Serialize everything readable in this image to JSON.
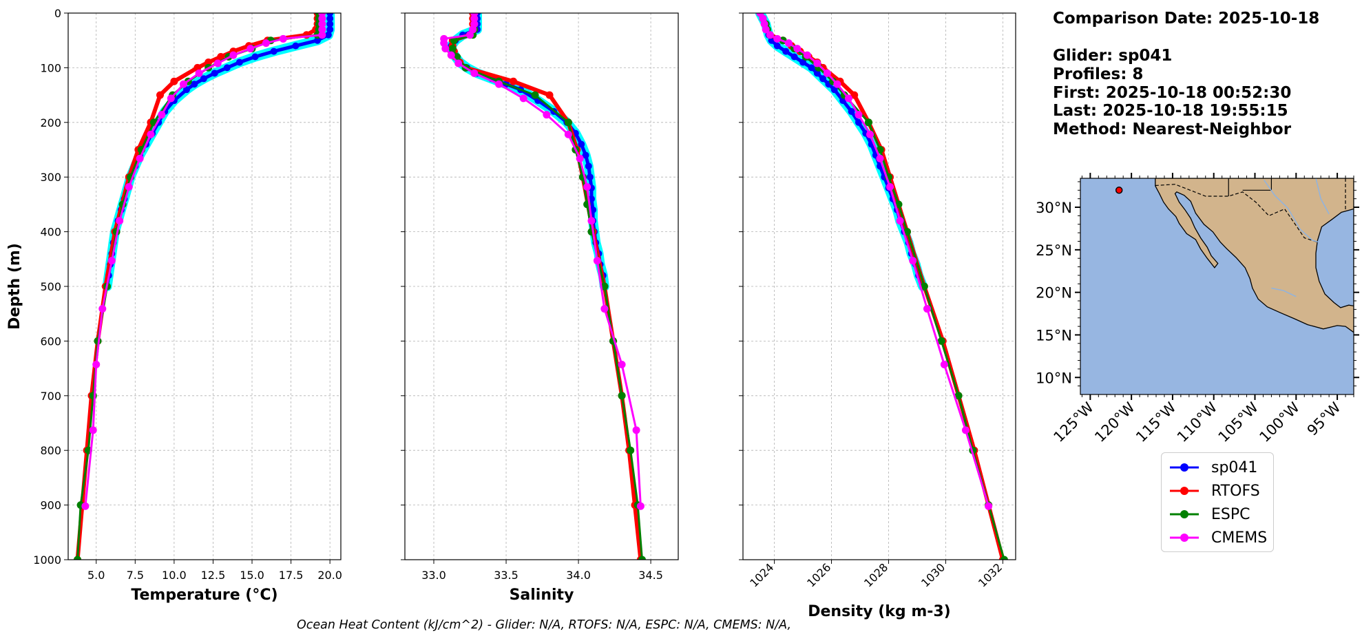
{
  "info": {
    "lines": [
      "Comparison Date: 2025-10-18",
      "",
      "Glider: sp041",
      "Profiles: 8",
      "First: 2025-10-18 00:52:30",
      "Last: 2025-10-18 19:55:15",
      "Method: Nearest-Neighbor"
    ]
  },
  "footer": {
    "ohc": "Ocean Heat Content (kJ/cm^2) - Glider: N/A,  RTOFS: N/A,  ESPC: N/A,  CMEMS: N/A,"
  },
  "colors": {
    "sp041": "#0000ff",
    "sp041_band": "#00ffff",
    "RTOFS": "#ff0000",
    "ESPC": "#008000",
    "CMEMS": "#ff00ff",
    "ocean": "#97b6e1",
    "land": "#d2b48c",
    "grid": "#b0b0b0"
  },
  "legend": {
    "entries": [
      {
        "label": "sp041",
        "color": "#0000ff"
      },
      {
        "label": "RTOFS",
        "color": "#ff0000"
      },
      {
        "label": "ESPC",
        "color": "#008000"
      },
      {
        "label": "CMEMS",
        "color": "#ff00ff"
      }
    ]
  },
  "map": {
    "lat_labels": [
      "30°N",
      "25°N",
      "20°N",
      "15°N",
      "10°N"
    ],
    "lon_labels": [
      "125°W",
      "120°W",
      "115°W",
      "110°W",
      "105°W",
      "100°W",
      "95°W"
    ],
    "lat_ticks": [
      30,
      25,
      20,
      15,
      10
    ],
    "lon_ticks": [
      -125,
      -120,
      -115,
      -110,
      -105,
      -100,
      -95
    ],
    "extent": {
      "lon": [
        -126.2,
        -93
      ],
      "lat": [
        8,
        33.4
      ]
    },
    "glider_position": {
      "lon": -121.5,
      "lat": 32.0
    }
  },
  "chart_data": [
    {
      "type": "line",
      "panel": "temperature",
      "xlabel": "Temperature (°C)",
      "ylabel": "Depth (m)",
      "xlim": [
        3.2,
        20.7
      ],
      "ylim": [
        1000,
        0
      ],
      "x_ticks": [
        5.0,
        7.5,
        10.0,
        12.5,
        15.0,
        17.5,
        20.0
      ],
      "x_tick_labels": [
        "5.0",
        "7.5",
        "10.0",
        "12.5",
        "15.0",
        "17.5",
        "20.0"
      ],
      "y_ticks": [
        0,
        100,
        200,
        300,
        400,
        500,
        600,
        700,
        800,
        900,
        1000
      ],
      "y_tick_labels": [
        "0",
        "100",
        "200",
        "300",
        "400",
        "500",
        "600",
        "700",
        "800",
        "900",
        "1000"
      ],
      "grid": true,
      "series": [
        {
          "name": "sp041",
          "depth": [
            0,
            10,
            20,
            30,
            40,
            50,
            60,
            70,
            80,
            90,
            100,
            110,
            120,
            130,
            140,
            160,
            180,
            200,
            220,
            240,
            260,
            280,
            300,
            320,
            340,
            360,
            380,
            400,
            420,
            440,
            460,
            480,
            500
          ],
          "values": [
            20.0,
            20.0,
            20.0,
            20.0,
            19.9,
            19.2,
            17.8,
            16.4,
            15.2,
            14.2,
            13.4,
            12.6,
            11.9,
            11.3,
            10.8,
            10.0,
            9.4,
            9.0,
            8.6,
            8.2,
            7.8,
            7.5,
            7.2,
            7.0,
            6.8,
            6.6,
            6.4,
            6.2,
            6.1,
            6.0,
            5.9,
            5.8,
            5.7
          ]
        },
        {
          "name": "RTOFS",
          "depth": [
            0,
            10,
            20,
            30,
            40,
            50,
            60,
            70,
            80,
            90,
            100,
            125,
            150,
            200,
            250,
            300,
            400,
            500,
            600,
            700,
            800,
            900,
            1000
          ],
          "values": [
            19.2,
            19.2,
            19.2,
            19.1,
            18.5,
            16.0,
            14.8,
            13.8,
            13.0,
            12.2,
            11.5,
            10.0,
            9.1,
            8.5,
            7.7,
            7.1,
            6.2,
            5.6,
            5.1,
            4.7,
            4.4,
            4.1,
            3.8
          ]
        },
        {
          "name": "ESPC",
          "depth": [
            0,
            10,
            20,
            30,
            40,
            50,
            65,
            80,
            100,
            125,
            150,
            200,
            250,
            300,
            350,
            400,
            500,
            600,
            700,
            800,
            900,
            1000
          ],
          "values": [
            19.3,
            19.3,
            19.3,
            19.3,
            19.2,
            16.2,
            15.0,
            13.5,
            12.2,
            10.9,
            9.9,
            8.7,
            7.9,
            7.2,
            6.7,
            6.3,
            5.7,
            5.1,
            4.8,
            4.5,
            4.0,
            3.8
          ]
        },
        {
          "name": "CMEMS",
          "depth": [
            0,
            10,
            20,
            30,
            40,
            47,
            55,
            65,
            77,
            92,
            110,
            130,
            156,
            186,
            222,
            266,
            318,
            380,
            453,
            541,
            643,
            763,
            902
          ],
          "values": [
            19.5,
            19.5,
            19.5,
            19.5,
            19.5,
            17.0,
            15.9,
            14.9,
            13.8,
            12.8,
            11.6,
            10.6,
            9.8,
            9.2,
            8.5,
            7.8,
            7.1,
            6.5,
            6.0,
            5.4,
            5.0,
            4.8,
            4.3
          ]
        }
      ]
    },
    {
      "type": "line",
      "panel": "salinity",
      "xlabel": "Salinity",
      "xlim": [
        32.8,
        34.69
      ],
      "ylim": [
        1000,
        0
      ],
      "x_ticks": [
        33.0,
        33.5,
        34.0,
        34.5
      ],
      "x_tick_labels": [
        "33.0",
        "33.5",
        "34.0",
        "34.5"
      ],
      "y_ticks": [
        0,
        100,
        200,
        300,
        400,
        500,
        600,
        700,
        800,
        900,
        1000
      ],
      "grid": true,
      "series": [
        {
          "name": "sp041",
          "depth": [
            0,
            10,
            20,
            30,
            40,
            50,
            60,
            70,
            80,
            90,
            100,
            110,
            120,
            130,
            140,
            160,
            180,
            200,
            220,
            240,
            260,
            280,
            300,
            320,
            340,
            360,
            380,
            400,
            420,
            440,
            460,
            480,
            500
          ],
          "values": [
            33.3,
            33.3,
            33.3,
            33.3,
            33.2,
            33.15,
            33.12,
            33.13,
            33.15,
            33.18,
            33.23,
            33.3,
            33.4,
            33.5,
            33.6,
            33.72,
            33.83,
            33.92,
            33.98,
            34.02,
            34.05,
            34.07,
            34.08,
            34.09,
            34.09,
            34.1,
            34.1,
            34.11,
            34.12,
            34.14,
            34.15,
            34.17,
            34.18
          ]
        },
        {
          "name": "RTOFS",
          "depth": [
            0,
            10,
            20,
            30,
            40,
            50,
            60,
            70,
            80,
            90,
            100,
            125,
            150,
            200,
            250,
            300,
            400,
            500,
            600,
            700,
            800,
            900,
            1000
          ],
          "values": [
            33.27,
            33.27,
            33.27,
            33.27,
            33.25,
            33.13,
            33.13,
            33.14,
            33.15,
            33.18,
            33.22,
            33.55,
            33.8,
            33.93,
            33.99,
            34.03,
            34.1,
            34.18,
            34.24,
            34.3,
            34.35,
            34.39,
            34.43
          ]
        },
        {
          "name": "ESPC",
          "depth": [
            0,
            10,
            20,
            30,
            40,
            50,
            65,
            80,
            100,
            125,
            150,
            200,
            250,
            300,
            350,
            400,
            500,
            600,
            700,
            800,
            900,
            1000
          ],
          "values": [
            33.28,
            33.28,
            33.28,
            33.28,
            33.27,
            33.14,
            33.13,
            33.16,
            33.22,
            33.45,
            33.7,
            33.93,
            33.98,
            34.03,
            34.06,
            34.09,
            34.18,
            34.24,
            34.3,
            34.36,
            34.41,
            34.44
          ]
        },
        {
          "name": "CMEMS",
          "depth": [
            0,
            10,
            20,
            30,
            40,
            47,
            55,
            65,
            77,
            92,
            110,
            130,
            156,
            186,
            222,
            266,
            318,
            380,
            453,
            541,
            643,
            763,
            902
          ],
          "values": [
            33.28,
            33.28,
            33.28,
            33.27,
            33.25,
            33.07,
            33.07,
            33.08,
            33.12,
            33.17,
            33.28,
            33.45,
            33.62,
            33.78,
            33.93,
            34.01,
            34.06,
            34.09,
            34.13,
            34.18,
            34.3,
            34.4,
            34.43
          ]
        }
      ]
    },
    {
      "type": "line",
      "panel": "density",
      "xlabel": "Density (kg m-3)",
      "xlim": [
        1022.9,
        1032.45
      ],
      "ylim": [
        1000,
        0
      ],
      "x_ticks": [
        1024,
        1026,
        1028,
        1030,
        1032
      ],
      "x_tick_labels": [
        "1024",
        "1026",
        "1028",
        "1030",
        "1032"
      ],
      "y_ticks": [
        0,
        100,
        200,
        300,
        400,
        500,
        600,
        700,
        800,
        900,
        1000
      ],
      "grid": true,
      "series": [
        {
          "name": "sp041",
          "depth": [
            0,
            10,
            20,
            30,
            40,
            50,
            60,
            70,
            80,
            90,
            100,
            110,
            120,
            130,
            140,
            160,
            180,
            200,
            220,
            240,
            260,
            280,
            300,
            320,
            340,
            360,
            380,
            400,
            420,
            440,
            460,
            480,
            500
          ],
          "values": [
            1023.5,
            1023.6,
            1023.7,
            1023.75,
            1023.8,
            1023.9,
            1024.1,
            1024.4,
            1024.7,
            1025.0,
            1025.3,
            1025.5,
            1025.7,
            1025.9,
            1026.1,
            1026.4,
            1026.7,
            1026.95,
            1027.2,
            1027.4,
            1027.55,
            1027.7,
            1027.85,
            1028.0,
            1028.15,
            1028.3,
            1028.4,
            1028.55,
            1028.7,
            1028.8,
            1028.95,
            1029.05,
            1029.2
          ]
        },
        {
          "name": "RTOFS",
          "depth": [
            0,
            10,
            20,
            30,
            40,
            50,
            60,
            70,
            80,
            90,
            100,
            125,
            150,
            200,
            250,
            300,
            400,
            500,
            600,
            700,
            800,
            900,
            1000
          ],
          "values": [
            1023.5,
            1023.6,
            1023.7,
            1023.75,
            1023.85,
            1024.3,
            1024.6,
            1024.9,
            1025.2,
            1025.5,
            1025.7,
            1026.3,
            1026.8,
            1027.3,
            1027.75,
            1028.05,
            1028.65,
            1029.25,
            1029.9,
            1030.45,
            1031.0,
            1031.5,
            1032.0
          ]
        },
        {
          "name": "ESPC",
          "depth": [
            0,
            10,
            20,
            30,
            40,
            50,
            65,
            80,
            100,
            125,
            150,
            200,
            250,
            300,
            350,
            400,
            500,
            600,
            700,
            800,
            900,
            1000
          ],
          "values": [
            1023.5,
            1023.6,
            1023.7,
            1023.75,
            1023.85,
            1024.3,
            1024.7,
            1025.1,
            1025.55,
            1026.05,
            1026.45,
            1027.3,
            1027.7,
            1028.0,
            1028.35,
            1028.65,
            1029.25,
            1029.85,
            1030.45,
            1030.95,
            1031.5,
            1032.05
          ]
        },
        {
          "name": "CMEMS",
          "depth": [
            0,
            10,
            20,
            30,
            40,
            47,
            55,
            65,
            77,
            92,
            110,
            130,
            156,
            186,
            222,
            266,
            318,
            380,
            453,
            541,
            643,
            763,
            902
          ],
          "values": [
            1023.5,
            1023.6,
            1023.65,
            1023.7,
            1023.85,
            1024.1,
            1024.5,
            1024.8,
            1025.15,
            1025.5,
            1025.85,
            1026.2,
            1026.6,
            1026.95,
            1027.35,
            1027.7,
            1028.05,
            1028.4,
            1028.85,
            1029.35,
            1029.95,
            1030.7,
            1031.5
          ]
        }
      ]
    }
  ]
}
